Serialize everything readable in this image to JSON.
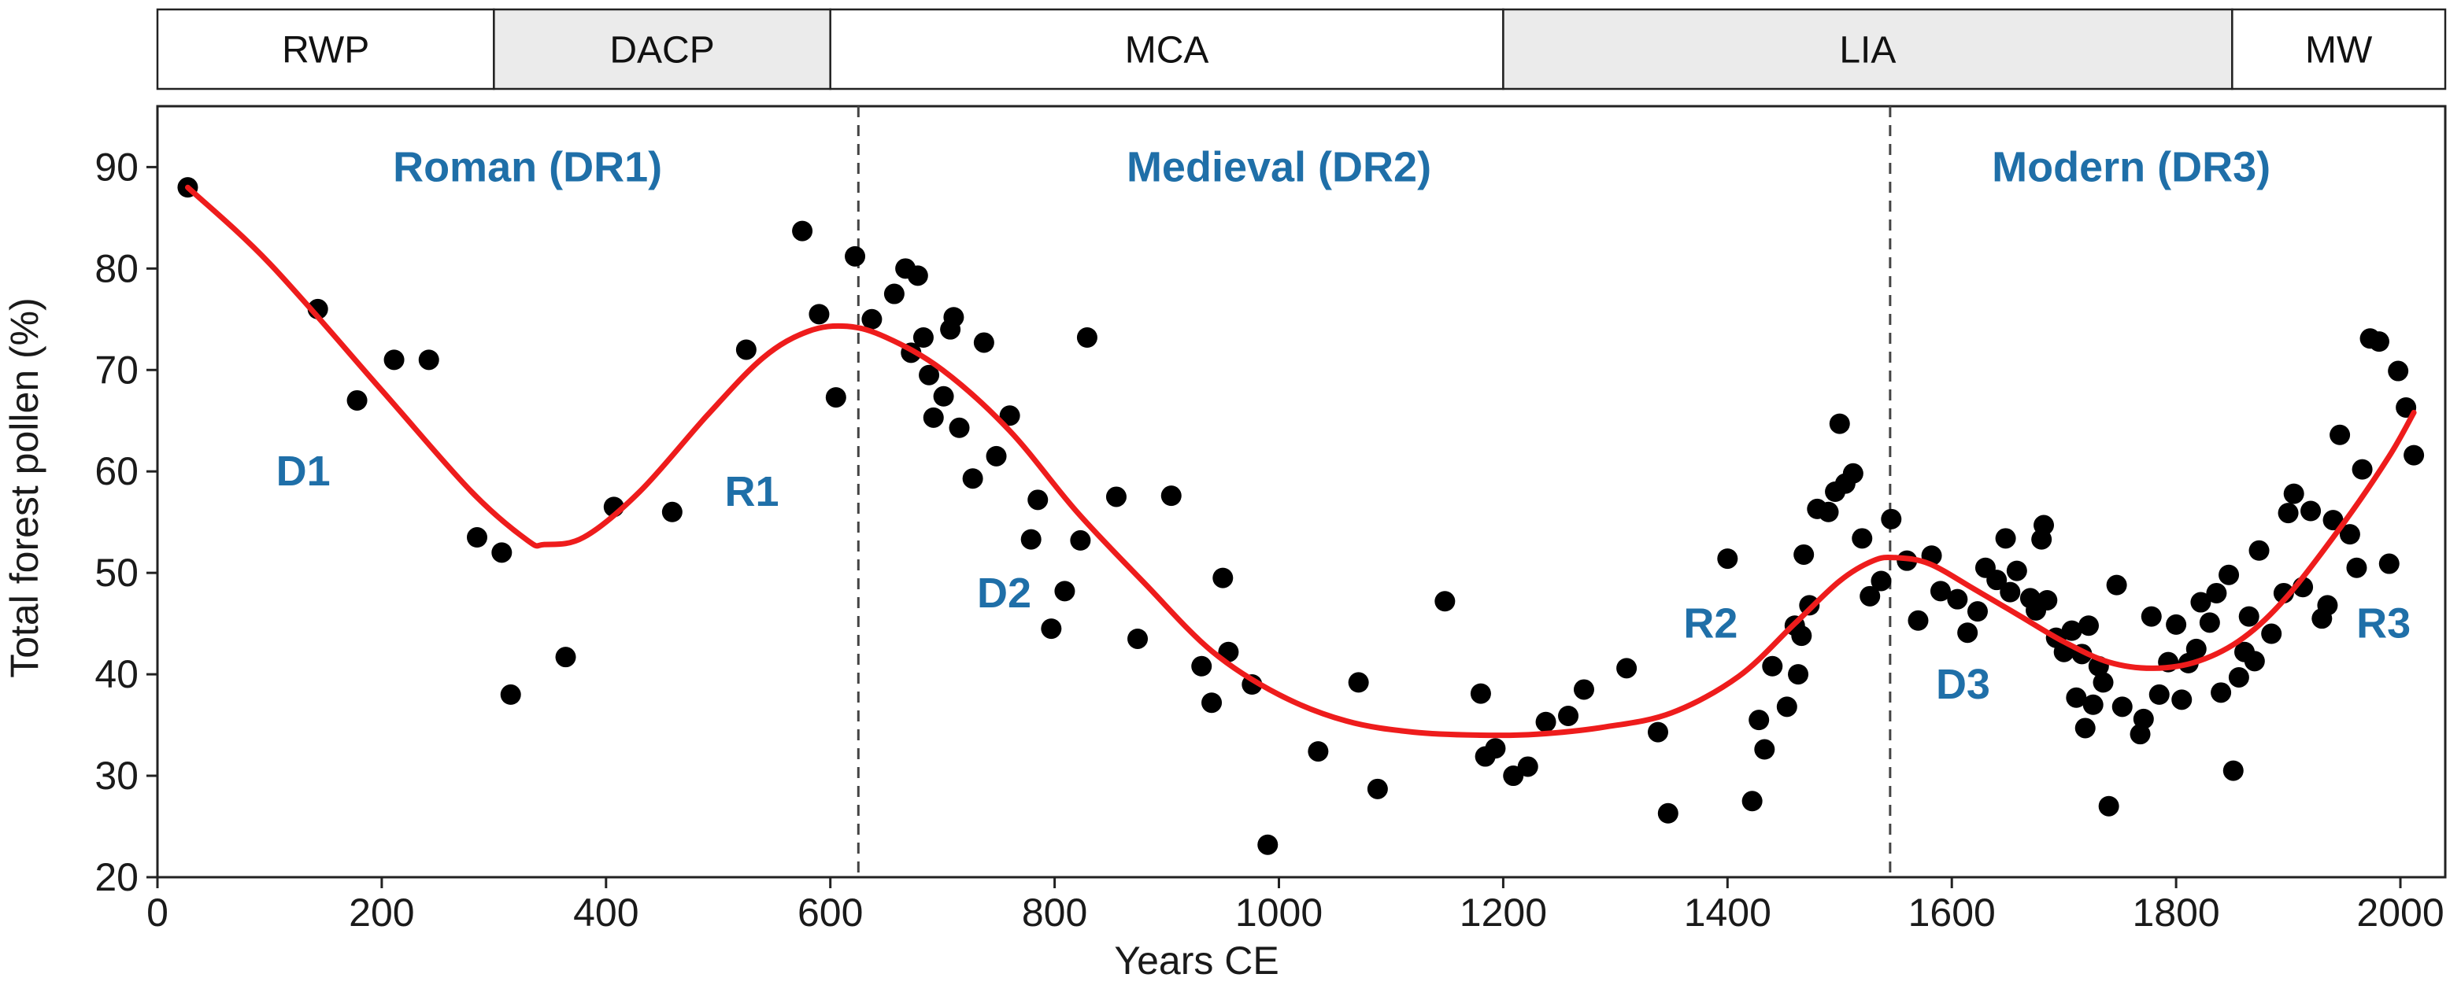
{
  "colors": {
    "curve": "#ee1c1c",
    "points": "#000000",
    "annotation": "#1f6fa8",
    "period_shade": "#ebebeb",
    "period_plain": "#ffffff",
    "axis": "#222222"
  },
  "chart_data": {
    "type": "scatter",
    "title": "",
    "xlabel": "Years CE",
    "ylabel": "Total forest pollen (%)",
    "xlim": [
      0,
      2040
    ],
    "ylim": [
      20,
      96
    ],
    "xticks": [
      0,
      200,
      400,
      600,
      800,
      1000,
      1200,
      1400,
      1600,
      1800,
      2000
    ],
    "yticks": [
      20,
      30,
      40,
      50,
      60,
      70,
      80,
      90
    ],
    "grid": false,
    "periods": [
      {
        "label": "RWP",
        "start": 0,
        "end": 300,
        "shaded": false
      },
      {
        "label": "DACP",
        "start": 300,
        "end": 600,
        "shaded": true
      },
      {
        "label": "MCA",
        "start": 600,
        "end": 1200,
        "shaded": false
      },
      {
        "label": "LIA",
        "start": 1200,
        "end": 1850,
        "shaded": true
      },
      {
        "label": "MW",
        "start": 1850,
        "end": 2040,
        "shaded": false
      }
    ],
    "boundaries": [
      625,
      1545
    ],
    "region_labels": [
      {
        "text": "Roman (DR1)",
        "x": 330,
        "y": 90
      },
      {
        "text": "Medieval (DR2)",
        "x": 1000,
        "y": 90
      },
      {
        "text": "Modern (DR3)",
        "x": 1760,
        "y": 90
      }
    ],
    "phase_labels": [
      {
        "text": "D1",
        "x": 130,
        "y": 60
      },
      {
        "text": "R1",
        "x": 530,
        "y": 58
      },
      {
        "text": "D2",
        "x": 755,
        "y": 48
      },
      {
        "text": "R2",
        "x": 1385,
        "y": 45
      },
      {
        "text": "D3",
        "x": 1610,
        "y": 39
      },
      {
        "text": "R3",
        "x": 1985,
        "y": 45
      }
    ],
    "series": [
      {
        "name": "samples",
        "type": "scatter",
        "points": [
          [
            27,
            88
          ],
          [
            143,
            76
          ],
          [
            178,
            67
          ],
          [
            211,
            71
          ],
          [
            242,
            71
          ],
          [
            285,
            53.5
          ],
          [
            307,
            52
          ],
          [
            315,
            38
          ],
          [
            364,
            41.7
          ],
          [
            407,
            56.5
          ],
          [
            459,
            56
          ],
          [
            525,
            72
          ],
          [
            575,
            83.7
          ],
          [
            590,
            75.5
          ],
          [
            605,
            67.3
          ],
          [
            622,
            81.2
          ],
          [
            637,
            75
          ],
          [
            657,
            77.5
          ],
          [
            667,
            80
          ],
          [
            678,
            79.3
          ],
          [
            672,
            71.7
          ],
          [
            683,
            73.2
          ],
          [
            688,
            69.5
          ],
          [
            692,
            65.3
          ],
          [
            701,
            67.4
          ],
          [
            707,
            74
          ],
          [
            710,
            75.2
          ],
          [
            715,
            64.3
          ],
          [
            727,
            59.3
          ],
          [
            737,
            72.7
          ],
          [
            748,
            61.5
          ],
          [
            760,
            65.5
          ],
          [
            779,
            53.3
          ],
          [
            785,
            57.2
          ],
          [
            797,
            44.5
          ],
          [
            809,
            48.2
          ],
          [
            823,
            53.2
          ],
          [
            829,
            73.2
          ],
          [
            855,
            57.5
          ],
          [
            874,
            43.5
          ],
          [
            904,
            57.6
          ],
          [
            931,
            40.8
          ],
          [
            940,
            37.2
          ],
          [
            950,
            49.5
          ],
          [
            955,
            42.2
          ],
          [
            976,
            39
          ],
          [
            990,
            23.2
          ],
          [
            1035,
            32.4
          ],
          [
            1071,
            39.2
          ],
          [
            1088,
            28.7
          ],
          [
            1148,
            47.2
          ],
          [
            1180,
            38.1
          ],
          [
            1184,
            31.9
          ],
          [
            1193,
            32.7
          ],
          [
            1209,
            30
          ],
          [
            1222,
            30.9
          ],
          [
            1238,
            35.3
          ],
          [
            1258,
            35.9
          ],
          [
            1272,
            38.5
          ],
          [
            1310,
            40.6
          ],
          [
            1338,
            34.3
          ],
          [
            1347,
            26.3
          ],
          [
            1400,
            51.4
          ],
          [
            1422,
            27.5
          ],
          [
            1428,
            35.5
          ],
          [
            1433,
            32.6
          ],
          [
            1440,
            40.8
          ],
          [
            1453,
            36.8
          ],
          [
            1460,
            44.8
          ],
          [
            1463,
            40
          ],
          [
            1466,
            43.8
          ],
          [
            1468,
            51.8
          ],
          [
            1473,
            46.8
          ],
          [
            1480,
            56.3
          ],
          [
            1490,
            56
          ],
          [
            1496,
            58
          ],
          [
            1500,
            64.7
          ],
          [
            1505,
            58.8
          ],
          [
            1512,
            59.8
          ],
          [
            1520,
            53.4
          ],
          [
            1527,
            47.7
          ],
          [
            1537,
            49.2
          ],
          [
            1546,
            55.3
          ],
          [
            1560,
            51.2
          ],
          [
            1570,
            45.3
          ],
          [
            1582,
            51.7
          ],
          [
            1590,
            48.2
          ],
          [
            1605,
            47.4
          ],
          [
            1614,
            44.1
          ],
          [
            1623,
            46.2
          ],
          [
            1630,
            50.5
          ],
          [
            1640,
            49.3
          ],
          [
            1648,
            53.4
          ],
          [
            1652,
            48.1
          ],
          [
            1658,
            50.2
          ],
          [
            1670,
            47.5
          ],
          [
            1675,
            46.3
          ],
          [
            1680,
            53.3
          ],
          [
            1682,
            54.7
          ],
          [
            1685,
            47.3
          ],
          [
            1693,
            43.6
          ],
          [
            1700,
            42.2
          ],
          [
            1707,
            44.3
          ],
          [
            1711,
            37.7
          ],
          [
            1716,
            42
          ],
          [
            1719,
            34.7
          ],
          [
            1722,
            44.8
          ],
          [
            1726,
            37
          ],
          [
            1731,
            40.8
          ],
          [
            1735,
            39.2
          ],
          [
            1740,
            27
          ],
          [
            1747,
            48.8
          ],
          [
            1752,
            36.8
          ],
          [
            1768,
            34.1
          ],
          [
            1771,
            35.6
          ],
          [
            1778,
            45.7
          ],
          [
            1785,
            38
          ],
          [
            1793,
            41.2
          ],
          [
            1800,
            44.9
          ],
          [
            1805,
            37.5
          ],
          [
            1811,
            41.1
          ],
          [
            1818,
            42.5
          ],
          [
            1822,
            47.1
          ],
          [
            1830,
            45.1
          ],
          [
            1836,
            48
          ],
          [
            1840,
            38.2
          ],
          [
            1847,
            49.8
          ],
          [
            1851,
            30.5
          ],
          [
            1856,
            39.7
          ],
          [
            1861,
            42.2
          ],
          [
            1865,
            45.7
          ],
          [
            1870,
            41.3
          ],
          [
            1874,
            52.2
          ],
          [
            1885,
            44
          ],
          [
            1896,
            48
          ],
          [
            1900,
            55.9
          ],
          [
            1905,
            57.8
          ],
          [
            1913,
            48.6
          ],
          [
            1920,
            56.1
          ],
          [
            1930,
            45.5
          ],
          [
            1935,
            46.8
          ],
          [
            1940,
            55.2
          ],
          [
            1946,
            63.6
          ],
          [
            1955,
            53.8
          ],
          [
            1961,
            50.5
          ],
          [
            1966,
            60.2
          ],
          [
            1973,
            73.1
          ],
          [
            1981,
            72.8
          ],
          [
            1990,
            50.9
          ],
          [
            1998,
            69.9
          ],
          [
            2005,
            66.3
          ],
          [
            2012,
            61.6
          ]
        ]
      },
      {
        "name": "smoothed trend",
        "type": "line",
        "points": [
          [
            27,
            88
          ],
          [
            100,
            80.5
          ],
          [
            200,
            68
          ],
          [
            280,
            58
          ],
          [
            330,
            53.2
          ],
          [
            345,
            52.8
          ],
          [
            380,
            53.5
          ],
          [
            430,
            58
          ],
          [
            490,
            65.5
          ],
          [
            540,
            71.2
          ],
          [
            580,
            73.8
          ],
          [
            615,
            74.3
          ],
          [
            650,
            73.2
          ],
          [
            700,
            70
          ],
          [
            760,
            64
          ],
          [
            820,
            56
          ],
          [
            880,
            49
          ],
          [
            940,
            42.3
          ],
          [
            1000,
            38
          ],
          [
            1060,
            35.4
          ],
          [
            1120,
            34.3
          ],
          [
            1180,
            34
          ],
          [
            1230,
            34.1
          ],
          [
            1290,
            34.8
          ],
          [
            1350,
            36.2
          ],
          [
            1410,
            39.8
          ],
          [
            1460,
            45
          ],
          [
            1500,
            49.2
          ],
          [
            1530,
            51.2
          ],
          [
            1550,
            51.5
          ],
          [
            1580,
            50.9
          ],
          [
            1620,
            48.4
          ],
          [
            1660,
            45.8
          ],
          [
            1700,
            43.2
          ],
          [
            1740,
            41.2
          ],
          [
            1780,
            40.6
          ],
          [
            1820,
            41.3
          ],
          [
            1860,
            43.6
          ],
          [
            1900,
            47.8
          ],
          [
            1950,
            55
          ],
          [
            1990,
            61.5
          ],
          [
            2012,
            65.8
          ]
        ]
      }
    ]
  }
}
